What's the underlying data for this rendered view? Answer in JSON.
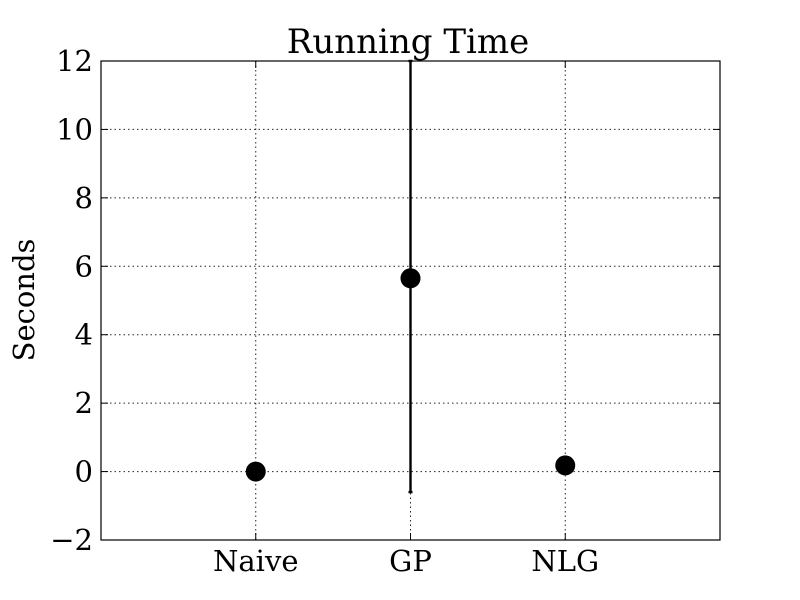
{
  "chart_data": {
    "type": "scatter",
    "title": "Running Time",
    "xlabel": "",
    "ylabel": "Seconds",
    "categories": [
      "Naive",
      "GP",
      "NLG"
    ],
    "values": [
      0.0,
      5.65,
      0.18
    ],
    "error_low": [
      0.0,
      6.25,
      0.0
    ],
    "error_high": [
      0.0,
      6.35,
      0.0
    ],
    "ylim": [
      -2,
      12
    ],
    "xlim": [
      0,
      4
    ],
    "x_positions": [
      1,
      2,
      3
    ],
    "yticks": [
      -2,
      0,
      2,
      4,
      6,
      8,
      10,
      12
    ],
    "ytick_labels": [
      "−2",
      "0",
      "2",
      "4",
      "6",
      "8",
      "10",
      "12"
    ],
    "grid": true,
    "legend": "none",
    "marker_color": "#000000"
  }
}
